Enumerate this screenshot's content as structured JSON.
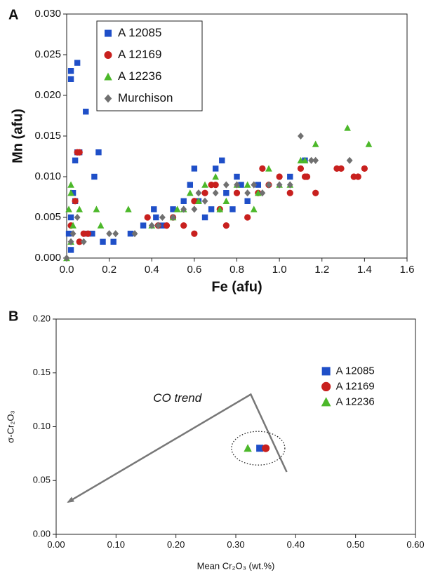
{
  "chart_data": [
    {
      "type": "scatter",
      "panel_label": "A",
      "x_label": "Fe (afu)",
      "y_label": "Mn (afu)",
      "xlim": [
        0,
        1.6
      ],
      "ylim": [
        0,
        0.03
      ],
      "xticks": [
        {
          "value": 0,
          "label": "0.0"
        },
        0.2,
        0.4,
        0.6,
        0.8,
        {
          "value": 1,
          "label": "1.0"
        },
        1.2,
        1.4,
        1.6
      ],
      "yticks": [
        {
          "value": 0,
          "label": "0.000"
        },
        {
          "value": 0.005,
          "label": "0.005"
        },
        {
          "value": 0.01,
          "label": "0.010"
        },
        {
          "value": 0.015,
          "label": "0.015"
        },
        {
          "value": 0.02,
          "label": "0.020"
        },
        {
          "value": 0.025,
          "label": "0.025"
        },
        {
          "value": 0.03,
          "label": "0.030"
        }
      ],
      "legend": "upper left",
      "legend_box": true,
      "series": [
        {
          "name": "A 12085",
          "color": "#1f4fc8",
          "marker": "square",
          "x": [
            0.02,
            0.02,
            0.05,
            0.09,
            0.05,
            0.06,
            0.04,
            0.15,
            0.13,
            0.03,
            0.04,
            0.02,
            0.01,
            0.02,
            0.1,
            0.12,
            0.17,
            0.22,
            0.3,
            0.36,
            0.41,
            0.42,
            0.5,
            0.55,
            0.58,
            0.6,
            0.62,
            0.65,
            0.7,
            0.73,
            0.75,
            0.8,
            0.82,
            0.85,
            0.9,
            1.05,
            1.12,
            0.78,
            0.68,
            0.45
          ],
          "values": [
            0.023,
            0.022,
            0.024,
            0.018,
            0.013,
            0.013,
            0.012,
            0.013,
            0.01,
            0.008,
            0.007,
            0.005,
            0.003,
            0.001,
            0.003,
            0.003,
            0.002,
            0.002,
            0.003,
            0.004,
            0.006,
            0.005,
            0.006,
            0.007,
            0.009,
            0.011,
            0.007,
            0.005,
            0.011,
            0.012,
            0.008,
            0.01,
            0.009,
            0.007,
            0.009,
            0.01,
            0.012,
            0.006,
            0.006,
            0.004
          ]
        },
        {
          "name": "A 12169",
          "color": "#c8201e",
          "marker": "circle",
          "x": [
            0.05,
            0.06,
            0.08,
            0.1,
            0.06,
            0.04,
            0.02,
            0.43,
            0.47,
            0.5,
            0.55,
            0.6,
            0.6,
            0.65,
            0.7,
            0.72,
            0.75,
            0.8,
            0.85,
            0.9,
            0.95,
            1.0,
            1.05,
            1.1,
            1.12,
            1.13,
            1.27,
            1.29,
            1.35,
            1.37,
            1.4,
            1.17,
            0.92,
            0.68,
            0.38
          ],
          "values": [
            0.013,
            0.013,
            0.003,
            0.003,
            0.002,
            0.007,
            0.004,
            0.004,
            0.004,
            0.005,
            0.004,
            0.003,
            0.007,
            0.008,
            0.009,
            0.006,
            0.004,
            0.008,
            0.005,
            0.008,
            0.009,
            0.01,
            0.008,
            0.011,
            0.01,
            0.01,
            0.011,
            0.011,
            0.01,
            0.01,
            0.011,
            0.008,
            0.011,
            0.009,
            0.005
          ]
        },
        {
          "name": "A 12236",
          "color": "#4cb82a",
          "marker": "triangle",
          "x": [
            0.02,
            0.02,
            0.01,
            0.03,
            0.02,
            0.0,
            0.06,
            0.14,
            0.16,
            0.29,
            0.4,
            0.5,
            0.52,
            0.58,
            0.62,
            0.65,
            0.7,
            0.75,
            0.8,
            0.85,
            0.88,
            0.9,
            0.95,
            1.0,
            1.05,
            1.1,
            1.17,
            1.12,
            1.32,
            1.42,
            0.72,
            0.55
          ],
          "values": [
            0.009,
            0.008,
            0.006,
            0.004,
            0.002,
            0.0,
            0.006,
            0.006,
            0.004,
            0.006,
            0.004,
            0.005,
            0.006,
            0.008,
            0.007,
            0.009,
            0.01,
            0.007,
            0.009,
            0.009,
            0.006,
            0.008,
            0.011,
            0.009,
            0.009,
            0.012,
            0.014,
            0.012,
            0.016,
            0.014,
            0.006,
            0.006
          ]
        },
        {
          "name": "Murchison",
          "color": "#707070",
          "marker": "diamond",
          "x": [
            0.0,
            0.02,
            0.03,
            0.05,
            0.08,
            0.2,
            0.23,
            0.32,
            0.4,
            0.45,
            0.5,
            0.55,
            0.6,
            0.65,
            0.7,
            0.75,
            0.8,
            0.85,
            0.88,
            0.92,
            0.95,
            1.0,
            1.05,
            1.1,
            1.15,
            1.17,
            1.33,
            0.62,
            0.43
          ],
          "values": [
            0.0,
            0.002,
            0.003,
            0.005,
            0.002,
            0.003,
            0.003,
            0.003,
            0.004,
            0.005,
            0.005,
            0.006,
            0.006,
            0.007,
            0.008,
            0.009,
            0.009,
            0.008,
            0.009,
            0.008,
            0.009,
            0.009,
            0.009,
            0.015,
            0.012,
            0.012,
            0.012,
            0.008,
            0.004
          ]
        }
      ]
    },
    {
      "type": "scatter",
      "panel_label": "B",
      "x_label": "Mean Cr₂O₃ (wt.%)",
      "y_label": "σ-Cr₂O₃",
      "xlim": [
        0,
        0.6
      ],
      "ylim": [
        0,
        0.2
      ],
      "xticks": [
        {
          "value": 0,
          "label": "0.00"
        },
        {
          "value": 0.1,
          "label": "0.10"
        },
        {
          "value": 0.2,
          "label": "0.20"
        },
        {
          "value": 0.3,
          "label": "0.30"
        },
        {
          "value": 0.4,
          "label": "0.40"
        },
        {
          "value": 0.5,
          "label": "0.50"
        },
        {
          "value": 0.6,
          "label": "0.60"
        }
      ],
      "yticks": [
        {
          "value": 0,
          "label": "0.00"
        },
        {
          "value": 0.05,
          "label": "0.05"
        },
        {
          "value": 0.1,
          "label": "0.10"
        },
        {
          "value": 0.15,
          "label": "0.15"
        },
        {
          "value": 0.2,
          "label": "0.20"
        }
      ],
      "legend": "right",
      "legend_box": false,
      "annotation": "CO trend",
      "trend_line": {
        "x": [
          0.385,
          0.325,
          0.02
        ],
        "y": [
          0.058,
          0.13,
          0.03
        ]
      },
      "series": [
        {
          "name": "A 12085",
          "color": "#1f4fc8",
          "marker": "square",
          "x": [
            0.34
          ],
          "values": [
            0.08
          ]
        },
        {
          "name": "A 12169",
          "color": "#c8201e",
          "marker": "circle",
          "x": [
            0.35
          ],
          "values": [
            0.08
          ]
        },
        {
          "name": "A 12236",
          "color": "#4cb82a",
          "marker": "triangle",
          "x": [
            0.32
          ],
          "values": [
            0.08
          ]
        }
      ]
    }
  ]
}
